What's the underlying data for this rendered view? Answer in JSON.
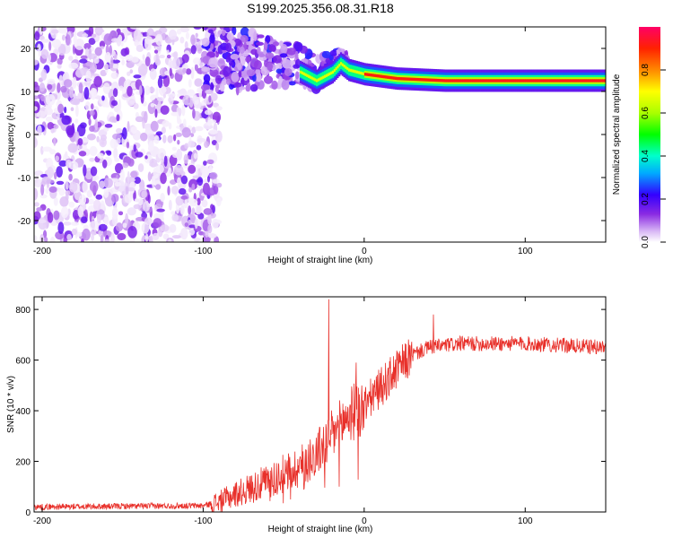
{
  "title": "S199.2025.356.08.31.R18",
  "colors": {
    "snr_line": "#e8302a",
    "frame": "#000000",
    "background": "#ffffff",
    "colormap": [
      "#ffffff",
      "#d9b8f5",
      "#8a2be2",
      "#3300ff",
      "#00aaff",
      "#00ffcc",
      "#00ff00",
      "#aaff00",
      "#ffff00",
      "#ff8800",
      "#ff2200",
      "#ff0066"
    ]
  },
  "chart_data": [
    {
      "id": "spectrogram",
      "type": "heatmap",
      "title": "",
      "xlabel": "Height of straight line (km)",
      "ylabel": "Frequency (Hz)",
      "xlim": [
        -205,
        150
      ],
      "ylim": [
        -25,
        25
      ],
      "xticks": [
        -200,
        -100,
        0,
        100
      ],
      "yticks": [
        20,
        10,
        0,
        -10,
        -20
      ],
      "xtick_labels": [
        "-200",
        "-100",
        "0",
        "100"
      ],
      "ytick_labels": [
        "20",
        "10",
        "0",
        "-10",
        "-20"
      ],
      "colorbar": {
        "label": "Normalized spectral amplitude",
        "range": [
          0.0,
          1.0
        ],
        "ticks": [
          0.0,
          0.2,
          0.4,
          0.6,
          0.8
        ],
        "tick_labels": [
          "0.0",
          "0.2",
          "0.4",
          "0.6",
          "0.8"
        ]
      },
      "features": {
        "noise_region_x": [
          -205,
          -95
        ],
        "transition_region_x": [
          -95,
          -20
        ],
        "tone_ridge": [
          {
            "x": -40,
            "freq": 14.5
          },
          {
            "x": -30,
            "freq": 12.5
          },
          {
            "x": -20,
            "freq": 14.5
          },
          {
            "x": -15,
            "freq": 16.5
          },
          {
            "x": -10,
            "freq": 15.0
          },
          {
            "x": 0,
            "freq": 14.0
          },
          {
            "x": 20,
            "freq": 13.0
          },
          {
            "x": 50,
            "freq": 12.5
          },
          {
            "x": 100,
            "freq": 12.5
          },
          {
            "x": 150,
            "freq": 12.5
          }
        ]
      }
    },
    {
      "id": "snr",
      "type": "line",
      "title": "",
      "xlabel": "Height of straight line (km)",
      "ylabel": "SNR (10 * v/v)",
      "xlim": [
        -205,
        150
      ],
      "ylim": [
        0,
        850
      ],
      "xticks": [
        -200,
        -100,
        0,
        100
      ],
      "yticks": [
        0,
        200,
        400,
        600,
        800
      ],
      "xtick_labels": [
        "-200",
        "-100",
        "0",
        "100"
      ],
      "ytick_labels": [
        "0",
        "200",
        "400",
        "600",
        "800"
      ],
      "series": [
        {
          "name": "SNR",
          "trend": [
            {
              "x": -205,
              "y": 20
            },
            {
              "x": -100,
              "y": 25
            },
            {
              "x": -90,
              "y": 40
            },
            {
              "x": -80,
              "y": 70
            },
            {
              "x": -60,
              "y": 120
            },
            {
              "x": -40,
              "y": 180
            },
            {
              "x": -30,
              "y": 230
            },
            {
              "x": -20,
              "y": 300
            },
            {
              "x": -10,
              "y": 380
            },
            {
              "x": 0,
              "y": 420
            },
            {
              "x": 10,
              "y": 490
            },
            {
              "x": 20,
              "y": 560
            },
            {
              "x": 30,
              "y": 620
            },
            {
              "x": 40,
              "y": 650
            },
            {
              "x": 60,
              "y": 665
            },
            {
              "x": 100,
              "y": 665
            },
            {
              "x": 150,
              "y": 650
            }
          ],
          "spikes": [
            {
              "x": -22,
              "y": 840
            },
            {
              "x": 43,
              "y": 780
            },
            {
              "x": -5,
              "y": 590
            }
          ]
        }
      ]
    }
  ]
}
